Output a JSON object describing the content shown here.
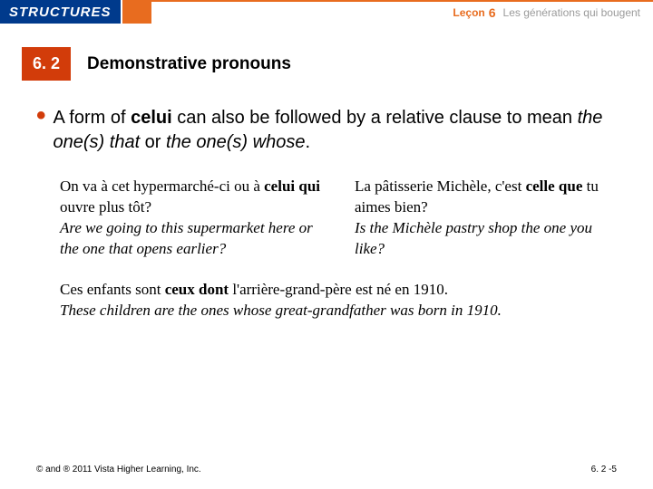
{
  "colors": {
    "navy": "#003a8c",
    "orange": "#e86c1f",
    "red": "#d23c0a",
    "grey": "#9a9a9a",
    "white": "#ffffff",
    "black": "#000000"
  },
  "header": {
    "structures": "STRUCTURES",
    "lecon_label": "Leçon",
    "lecon_num": "6",
    "lecon_title": "Les générations qui bougent"
  },
  "section": {
    "number": "6. 2",
    "title": "Demonstrative pronouns"
  },
  "intro": {
    "pre": "A form of ",
    "bold1": "celui",
    "mid": " can also be followed by a relative clause to mean ",
    "ital1": "the one(s) that",
    "or": " or ",
    "ital2": "the one(s) whose",
    "end": "."
  },
  "example_left": {
    "fr1": "On va à cet hypermarché-ci ou à ",
    "fr_bold": "celui qui",
    "fr2": " ouvre plus tôt?",
    "en": "Are we going to this supermarket here or the one that opens earlier?"
  },
  "example_right": {
    "fr1": "La pâtisserie Michèle, c'est ",
    "fr_bold": "celle que",
    "fr2": " tu aimes bien?",
    "en": "Is the Michèle pastry shop the one you like?"
  },
  "example_bottom": {
    "fr1": "Ces enfants sont ",
    "fr_bold": "ceux dont",
    "fr2": " l'arrière-grand-père est né en 1910.",
    "en": "These children are the ones whose great-grandfather was born in 1910."
  },
  "footer": {
    "copyright": "© and ® 2011 Vista Higher Learning, Inc.",
    "page": "6. 2 -5"
  }
}
